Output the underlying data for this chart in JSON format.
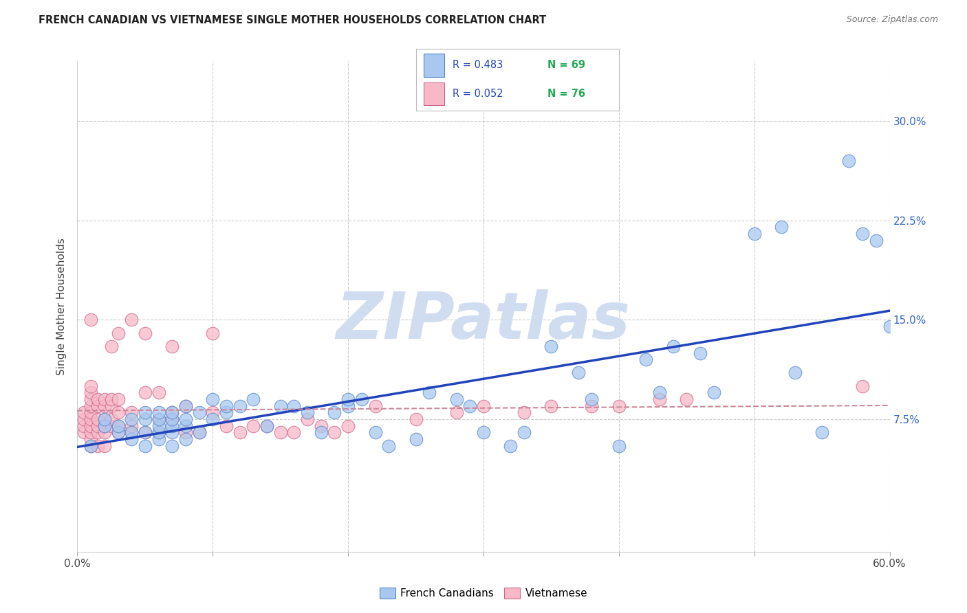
{
  "title": "FRENCH CANADIAN VS VIETNAMESE SINGLE MOTHER HOUSEHOLDS CORRELATION CHART",
  "source": "Source: ZipAtlas.com",
  "ylabel": "Single Mother Households",
  "xlim": [
    0.0,
    0.6
  ],
  "ylim": [
    -0.025,
    0.345
  ],
  "yticks": [
    0.075,
    0.15,
    0.225,
    0.3
  ],
  "ytick_labels": [
    "7.5%",
    "15.0%",
    "22.5%",
    "30.0%"
  ],
  "xtick_labels": [
    "0.0%",
    "",
    "",
    "",
    "",
    "",
    "60.0%"
  ],
  "french_R": 0.483,
  "french_N": 69,
  "viet_R": 0.052,
  "viet_N": 76,
  "french_color": "#a8c8f0",
  "french_edge_color": "#5588cc",
  "viet_color": "#f8b8c8",
  "viet_edge_color": "#cc6688",
  "french_line_color": "#2244bb",
  "viet_line_color": "#cc8899",
  "background_color": "#ffffff",
  "grid_color": "#cccccc",
  "watermark_color": "#d0ddf0",
  "legend_R_color": "#2244bb",
  "legend_N_color": "#22aa55",
  "french_x": [
    0.01,
    0.02,
    0.02,
    0.03,
    0.03,
    0.04,
    0.04,
    0.04,
    0.05,
    0.05,
    0.05,
    0.05,
    0.06,
    0.06,
    0.06,
    0.06,
    0.06,
    0.07,
    0.07,
    0.07,
    0.07,
    0.07,
    0.08,
    0.08,
    0.08,
    0.08,
    0.09,
    0.09,
    0.1,
    0.1,
    0.11,
    0.11,
    0.12,
    0.13,
    0.14,
    0.15,
    0.16,
    0.17,
    0.18,
    0.19,
    0.2,
    0.2,
    0.21,
    0.22,
    0.23,
    0.25,
    0.26,
    0.28,
    0.29,
    0.3,
    0.32,
    0.33,
    0.35,
    0.37,
    0.38,
    0.4,
    0.42,
    0.43,
    0.44,
    0.46,
    0.47,
    0.5,
    0.52,
    0.53,
    0.55,
    0.57,
    0.58,
    0.59,
    0.6
  ],
  "french_y": [
    0.055,
    0.07,
    0.075,
    0.065,
    0.07,
    0.06,
    0.065,
    0.075,
    0.055,
    0.065,
    0.075,
    0.08,
    0.06,
    0.065,
    0.07,
    0.075,
    0.08,
    0.055,
    0.065,
    0.07,
    0.075,
    0.08,
    0.06,
    0.07,
    0.075,
    0.085,
    0.065,
    0.08,
    0.075,
    0.09,
    0.08,
    0.085,
    0.085,
    0.09,
    0.07,
    0.085,
    0.085,
    0.08,
    0.065,
    0.08,
    0.085,
    0.09,
    0.09,
    0.065,
    0.055,
    0.06,
    0.095,
    0.09,
    0.085,
    0.065,
    0.055,
    0.065,
    0.13,
    0.11,
    0.09,
    0.055,
    0.12,
    0.095,
    0.13,
    0.125,
    0.095,
    0.215,
    0.22,
    0.11,
    0.065,
    0.27,
    0.215,
    0.21,
    0.145
  ],
  "viet_x": [
    0.005,
    0.005,
    0.005,
    0.005,
    0.01,
    0.01,
    0.01,
    0.01,
    0.01,
    0.01,
    0.01,
    0.01,
    0.01,
    0.01,
    0.01,
    0.015,
    0.015,
    0.015,
    0.015,
    0.015,
    0.015,
    0.02,
    0.02,
    0.02,
    0.02,
    0.02,
    0.02,
    0.025,
    0.025,
    0.025,
    0.025,
    0.025,
    0.03,
    0.03,
    0.03,
    0.03,
    0.03,
    0.04,
    0.04,
    0.04,
    0.04,
    0.05,
    0.05,
    0.05,
    0.06,
    0.06,
    0.06,
    0.07,
    0.07,
    0.07,
    0.08,
    0.08,
    0.09,
    0.1,
    0.1,
    0.11,
    0.12,
    0.13,
    0.14,
    0.15,
    0.16,
    0.17,
    0.18,
    0.19,
    0.2,
    0.22,
    0.25,
    0.28,
    0.3,
    0.33,
    0.35,
    0.38,
    0.4,
    0.43,
    0.45,
    0.58
  ],
  "viet_y": [
    0.065,
    0.07,
    0.075,
    0.08,
    0.055,
    0.06,
    0.065,
    0.07,
    0.075,
    0.08,
    0.085,
    0.09,
    0.095,
    0.1,
    0.15,
    0.055,
    0.065,
    0.07,
    0.075,
    0.085,
    0.09,
    0.055,
    0.065,
    0.07,
    0.075,
    0.085,
    0.09,
    0.07,
    0.075,
    0.085,
    0.09,
    0.13,
    0.065,
    0.07,
    0.08,
    0.09,
    0.14,
    0.065,
    0.07,
    0.08,
    0.15,
    0.065,
    0.095,
    0.14,
    0.065,
    0.075,
    0.095,
    0.075,
    0.08,
    0.13,
    0.065,
    0.085,
    0.065,
    0.08,
    0.14,
    0.07,
    0.065,
    0.07,
    0.07,
    0.065,
    0.065,
    0.075,
    0.07,
    0.065,
    0.07,
    0.085,
    0.075,
    0.08,
    0.085,
    0.08,
    0.085,
    0.085,
    0.085,
    0.09,
    0.09,
    0.1
  ]
}
